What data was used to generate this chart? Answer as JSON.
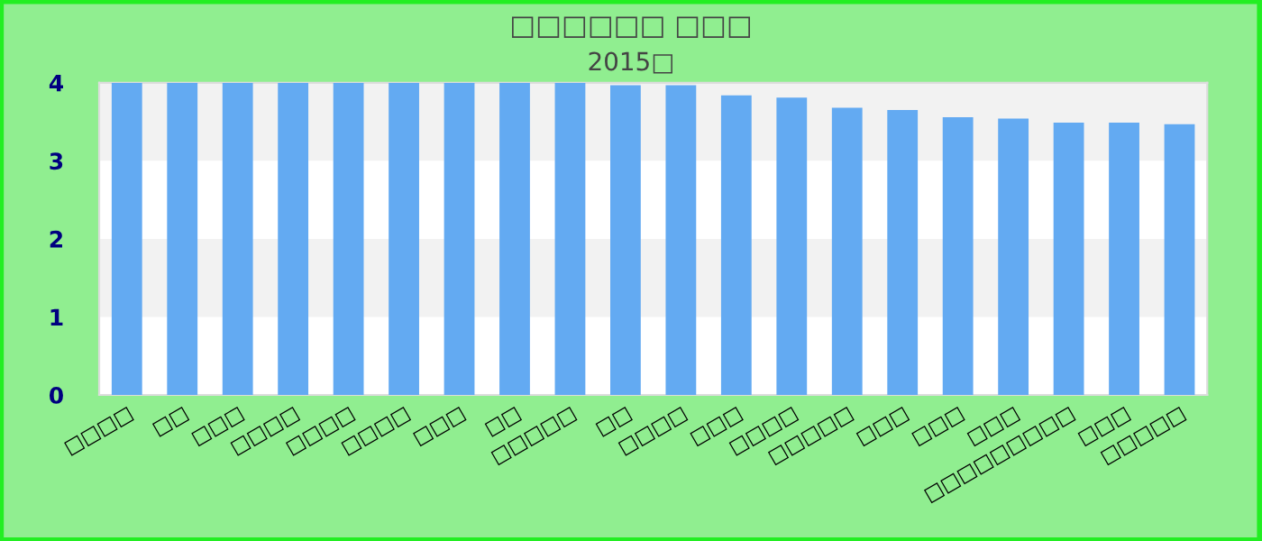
{
  "chart_data": {
    "type": "bar",
    "title": "□□□□□□ □□□",
    "subtitle": "2015□",
    "categories": [
      "□□□□",
      "□□",
      "□□□",
      "□□□□",
      "□□□□",
      "□□□□",
      "□□□",
      "□□",
      "□□□□□",
      "□□",
      "□□□□",
      "□□□",
      "□□□□",
      "□□□□□",
      "□□□",
      "□□□",
      "□□□",
      "□□□□□□□□□",
      "□□□",
      "□□□□□"
    ],
    "values": [
      4.0,
      4.0,
      4.0,
      4.0,
      4.0,
      4.0,
      4.0,
      4.0,
      4.0,
      3.97,
      3.97,
      3.84,
      3.81,
      3.68,
      3.65,
      3.56,
      3.54,
      3.49,
      3.49,
      3.47
    ],
    "color": "#63aaf2",
    "ylim": [
      0,
      4
    ],
    "yticks": [
      0,
      1,
      2,
      3,
      4
    ],
    "grid": false,
    "legend": false,
    "bands": [
      {
        "axis": "y",
        "from": 1,
        "to": 2,
        "color": "#f2f2f2"
      },
      {
        "axis": "y",
        "from": 3,
        "to": 4,
        "color": "#f2f2f2"
      }
    ]
  }
}
